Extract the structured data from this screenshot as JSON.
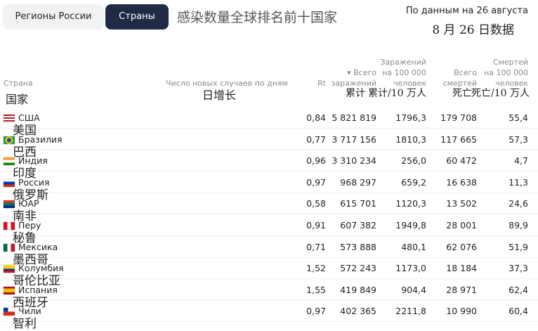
{
  "tabs": [
    "Регионы России",
    "Страны"
  ],
  "overlay_title": "感染数量全球排名前十国家",
  "date_note": "По данным на 26 августа",
  "date_note_cn": "8 月 26 日数据",
  "header": {
    "country": {
      "label": "Страна",
      "label_cn": "国家"
    },
    "daily": {
      "label": "Число новых случаев по дням",
      "label_cn": "日增长"
    },
    "rt": {
      "label": "Rt"
    },
    "total": {
      "lines": [
        "▾ Всего",
        "заражений"
      ],
      "label_cn": "累计"
    },
    "per100k": {
      "lines": [
        "Заражений",
        "на 100 000",
        "человек"
      ],
      "label_cn": "累计/10 万人"
    },
    "deaths": {
      "lines": [
        "Всего",
        "смертей"
      ],
      "label_cn": "死亡"
    },
    "deaths_per100k": {
      "lines": [
        "Смертей",
        "на 100 000",
        "человек"
      ],
      "label_cn": "死亡/10 万人"
    }
  },
  "rows": [
    {
      "name": "США",
      "name_cn": "美国",
      "rt": "0,84",
      "total": "5 821 819",
      "per100k": "1796,3",
      "deaths": "179 708",
      "deaths_per100k": "55,4"
    },
    {
      "name": "Бразилия",
      "name_cn": "巴西",
      "rt": "0,77",
      "total": "3 717 156",
      "per100k": "1810,3",
      "deaths": "117 665",
      "deaths_per100k": "57,3"
    },
    {
      "name": "Индия",
      "name_cn": "印度",
      "rt": "0,96",
      "total": "3 310 234",
      "per100k": "256,0",
      "deaths": "60 472",
      "deaths_per100k": "4,7"
    },
    {
      "name": "Россия",
      "name_cn": "俄罗斯",
      "rt": "0,97",
      "total": "968 297",
      "per100k": "659,2",
      "deaths": "16 638",
      "deaths_per100k": "11,3"
    },
    {
      "name": "ЮАР",
      "name_cn": "南非",
      "rt": "0,58",
      "total": "615 701",
      "per100k": "1120,3",
      "deaths": "13 502",
      "deaths_per100k": "24,6"
    },
    {
      "name": "Перу",
      "name_cn": "秘鲁",
      "rt": "0,91",
      "total": "607 382",
      "per100k": "1949,8",
      "deaths": "28 001",
      "deaths_per100k": "89,9"
    },
    {
      "name": "Мексика",
      "name_cn": "墨西哥",
      "rt": "0,71",
      "total": "573 888",
      "per100k": "480,1",
      "deaths": "62 076",
      "deaths_per100k": "51,9"
    },
    {
      "name": "Колумбия",
      "name_cn": "哥伦比亚",
      "rt": "1,52",
      "total": "572 243",
      "per100k": "1173,0",
      "deaths": "18 184",
      "deaths_per100k": "37,3"
    },
    {
      "name": "Испания",
      "name_cn": "西班牙",
      "rt": "1,55",
      "total": "419 849",
      "per100k": "904,4",
      "deaths": "28 971",
      "deaths_per100k": "62,4"
    },
    {
      "name": "Чили",
      "name_cn": "智利",
      "rt": "0,97",
      "total": "402 365",
      "per100k": "2211,8",
      "deaths": "10 990",
      "deaths_per100k": "60,4"
    }
  ]
}
